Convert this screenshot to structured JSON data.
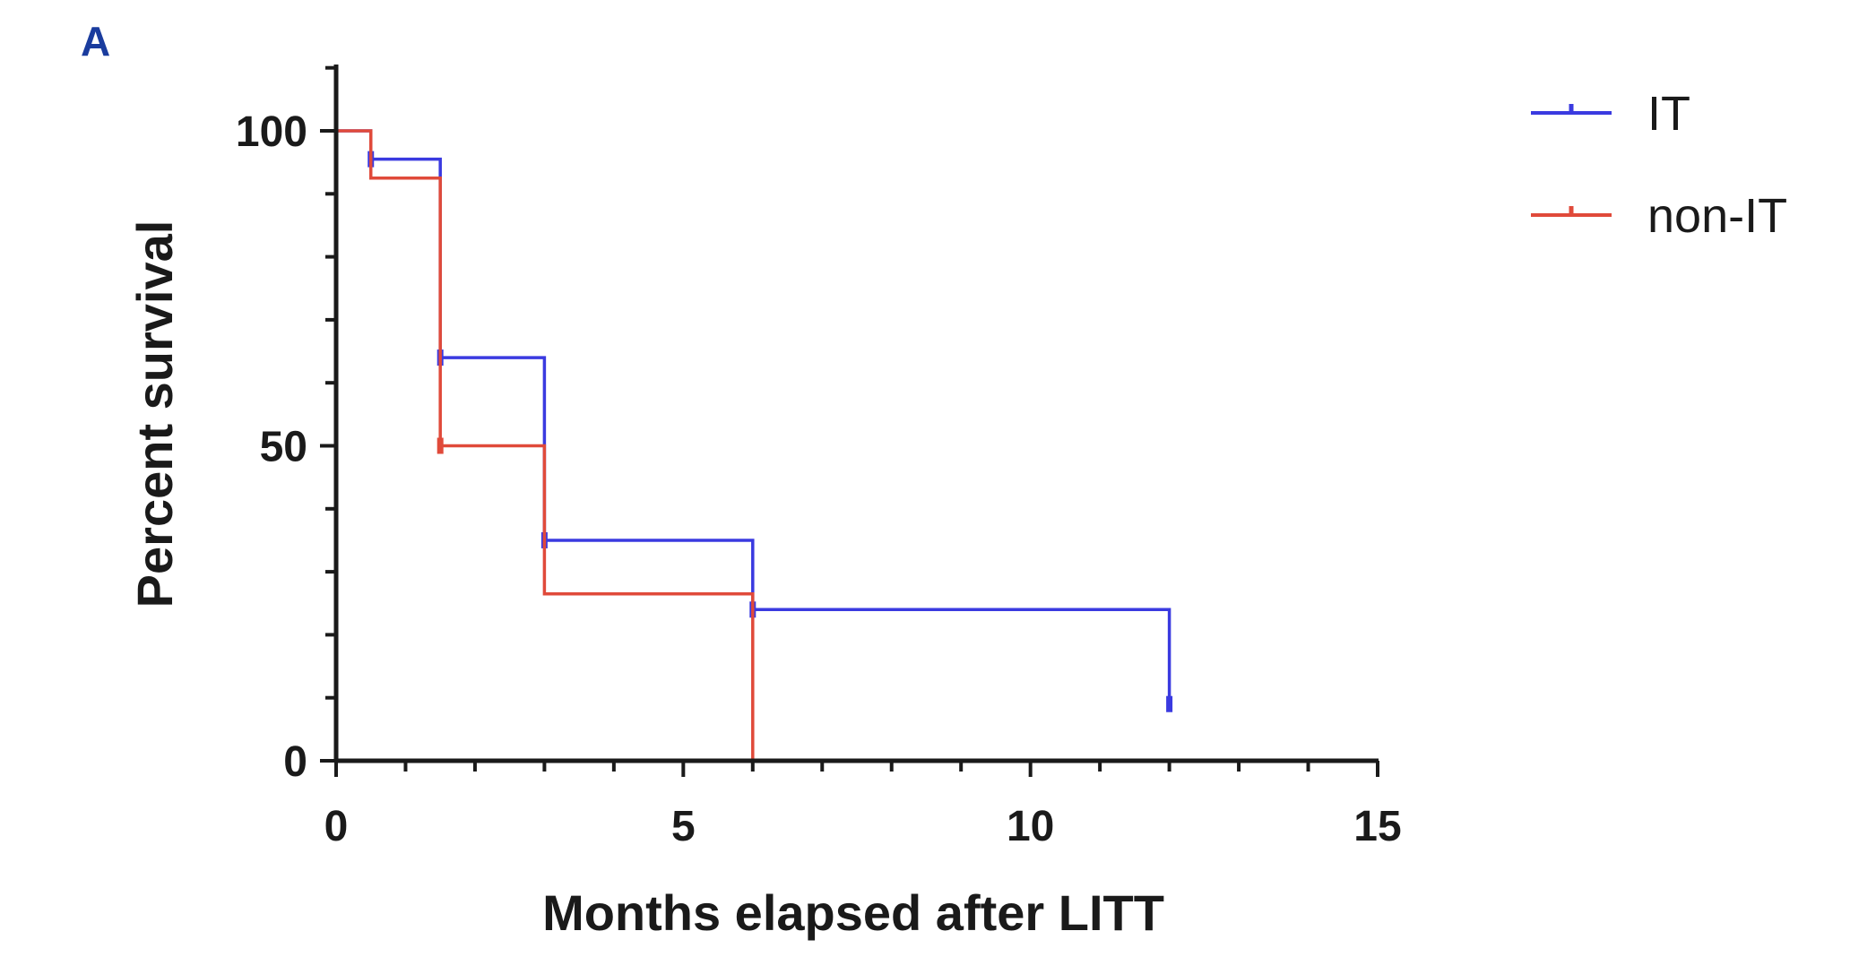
{
  "panel_label": "A",
  "chart_data": {
    "type": "line",
    "subtype": "kaplan-meier step",
    "xlabel": "Months elapsed after LITT",
    "ylabel": "Percent survival",
    "xlim": [
      0,
      15
    ],
    "ylim": [
      0,
      100
    ],
    "xticks": [
      0,
      5,
      10,
      15
    ],
    "yticks": [
      0,
      50,
      100
    ],
    "x_minor_step": 1,
    "y_minor_step": 10,
    "grid": false,
    "legend_position": "top-right",
    "series": [
      {
        "name": "IT",
        "color": "#3a3ae0",
        "steps": [
          [
            0,
            100
          ],
          [
            0.5,
            95.5
          ],
          [
            1.5,
            64
          ],
          [
            3,
            35
          ],
          [
            6,
            24
          ],
          [
            12,
            9
          ]
        ],
        "censored": [
          [
            0.5,
            95.5
          ],
          [
            1.5,
            64
          ],
          [
            3,
            35
          ],
          [
            6,
            24
          ],
          [
            12,
            9
          ]
        ]
      },
      {
        "name": "non-IT",
        "color": "#e04a3a",
        "steps": [
          [
            0,
            100
          ],
          [
            0.5,
            92.5
          ],
          [
            1.5,
            50
          ],
          [
            3,
            26.5
          ],
          [
            6,
            0
          ]
        ],
        "censored": [
          [
            1.5,
            50
          ]
        ]
      }
    ]
  }
}
